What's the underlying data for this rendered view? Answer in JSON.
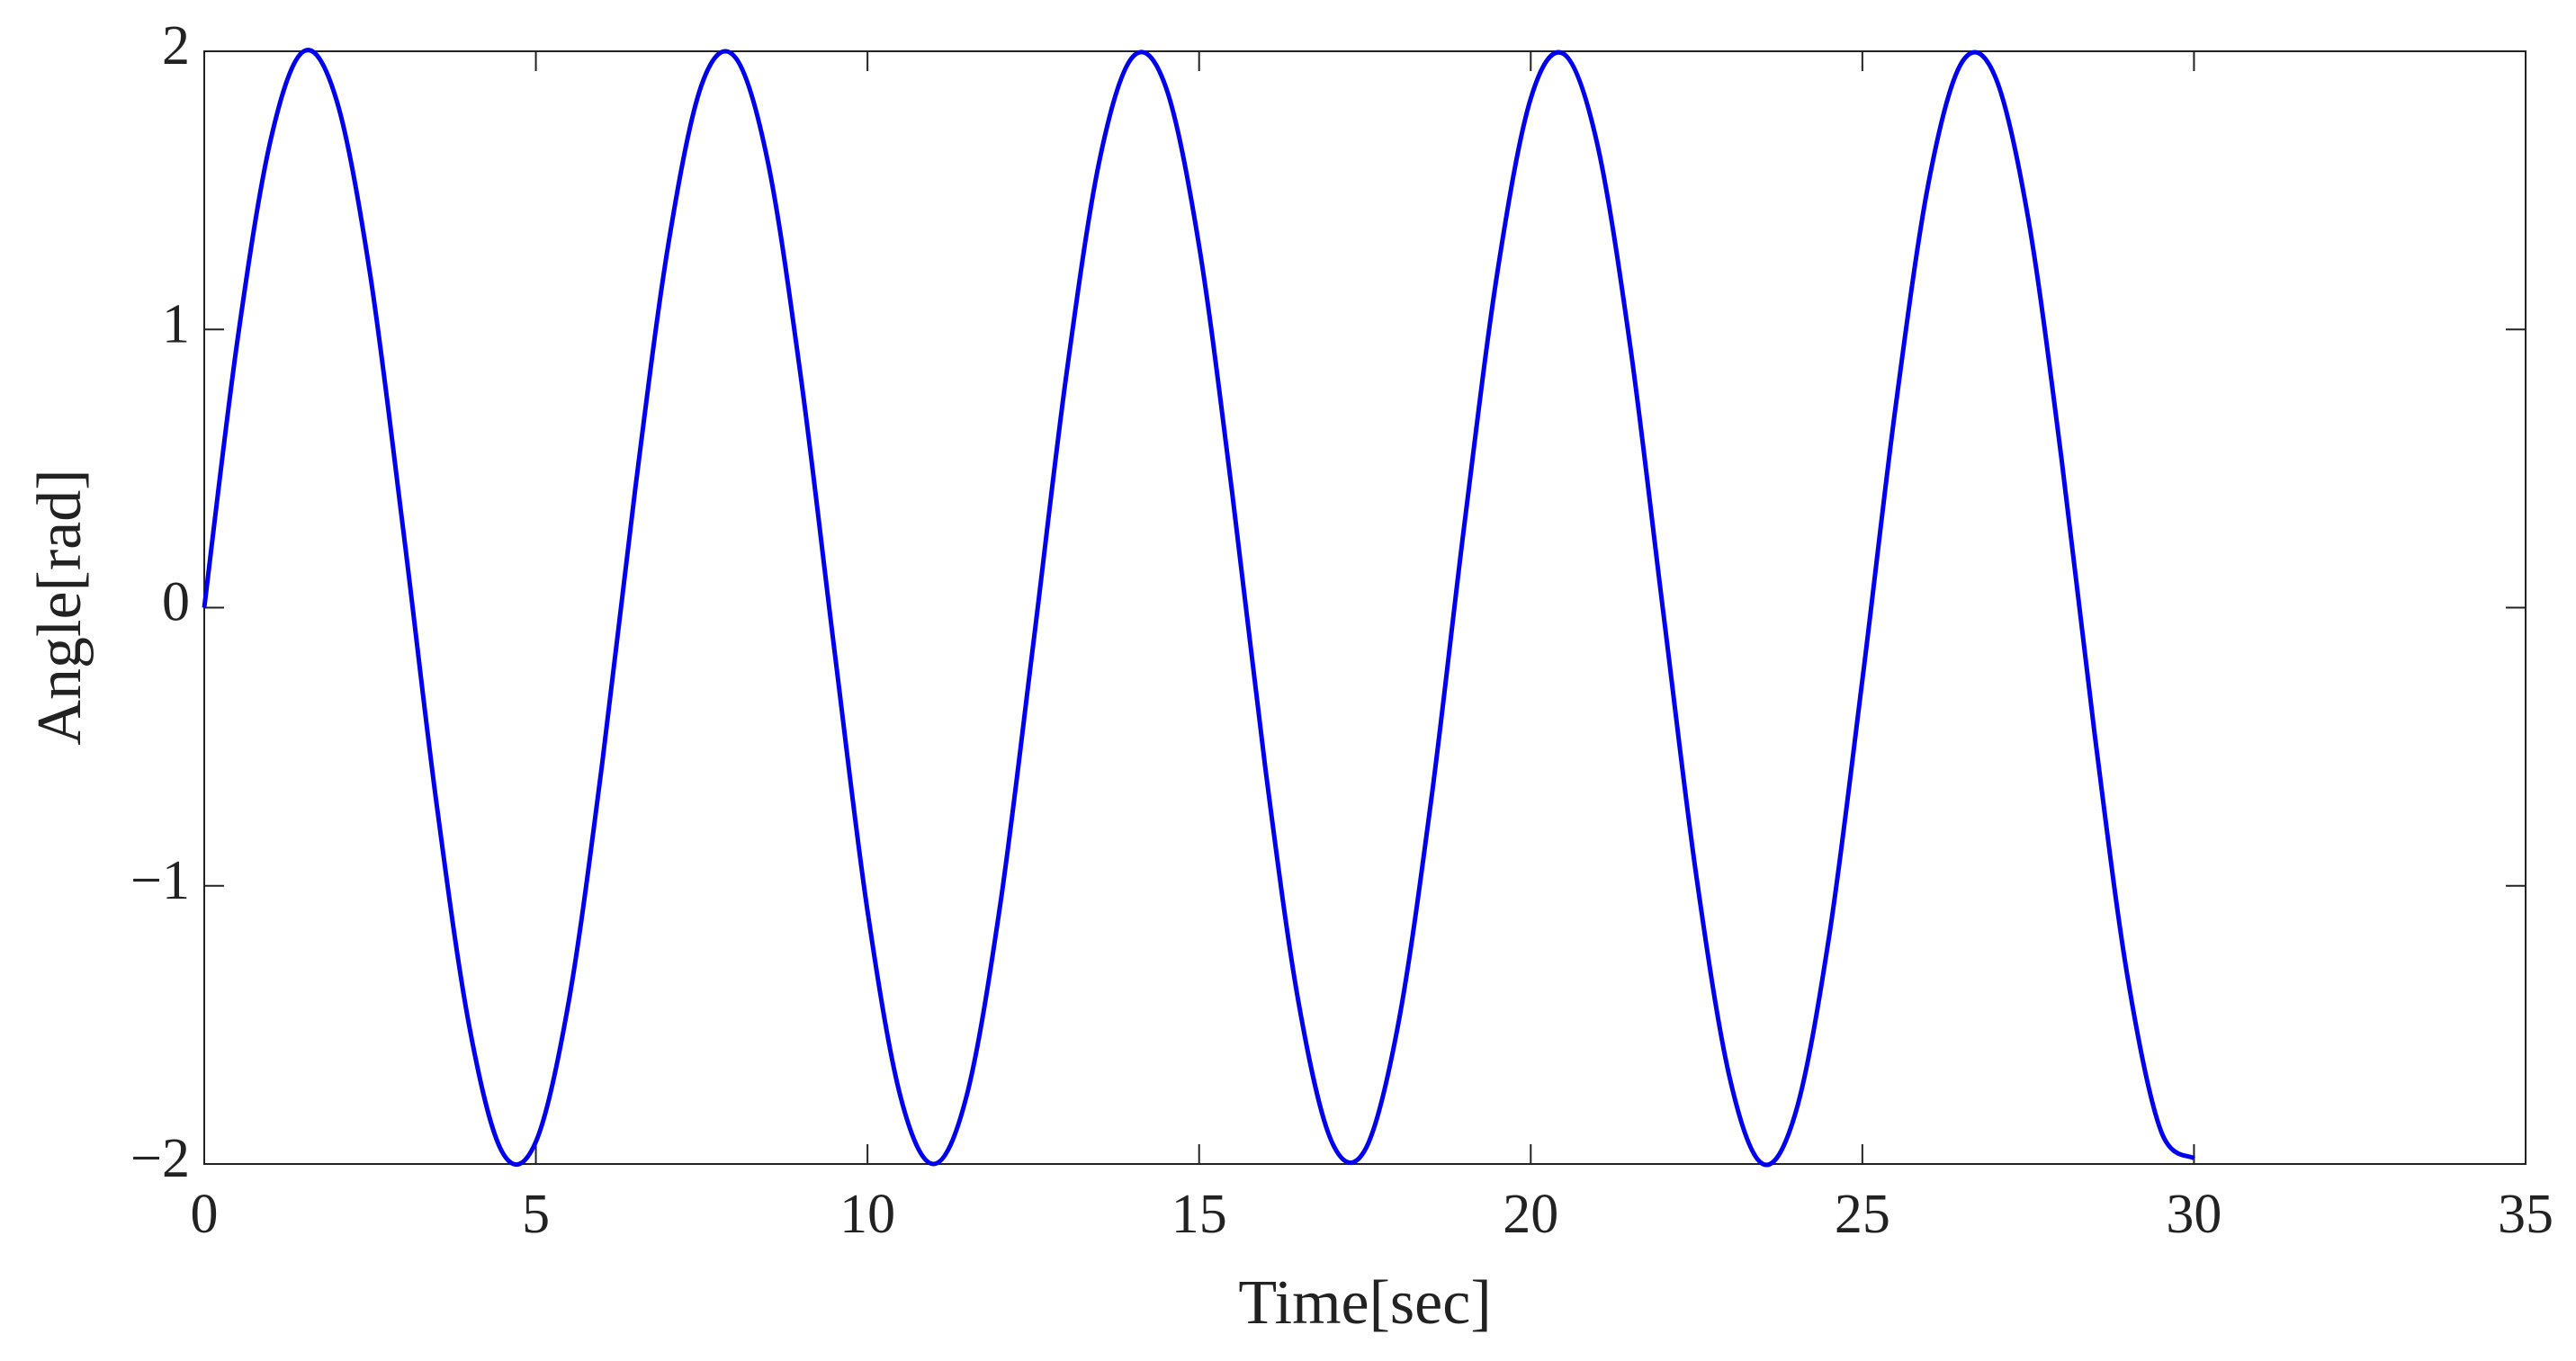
{
  "chart_data": {
    "type": "line",
    "x_label": "Time[sec]",
    "y_label": "Angle[rad]",
    "x": [
      0,
      0.5,
      1,
      1.5,
      2,
      2.5,
      3,
      3.5,
      4,
      4.5,
      5,
      5.5,
      6,
      6.5,
      7,
      7.5,
      8,
      8.5,
      9,
      9.5,
      10,
      10.5,
      11,
      11.5,
      12,
      12.5,
      13,
      13.5,
      14,
      14.5,
      15,
      15.5,
      16,
      16.5,
      17,
      17.5,
      18,
      18.5,
      19,
      19.5,
      20,
      20.5,
      21,
      21.5,
      22,
      22.5,
      23,
      23.5,
      24,
      24.5,
      25,
      25.5,
      26,
      26.5,
      27,
      27.5,
      28,
      28.5,
      29,
      29.5,
      30
    ],
    "series": [
      {
        "color": "#0000ee",
        "values": [
          0,
          0.96,
          1.68,
          2.0,
          1.82,
          1.2,
          0.28,
          -0.7,
          -1.51,
          -1.96,
          -1.92,
          -1.41,
          -0.56,
          0.43,
          1.31,
          1.88,
          1.98,
          1.6,
          0.82,
          -0.15,
          -1.09,
          -1.76,
          -2.0,
          -1.75,
          -1.07,
          -0.13,
          0.84,
          1.61,
          1.98,
          1.87,
          1.3,
          0.41,
          -0.58,
          -1.42,
          -1.92,
          -1.95,
          -1.5,
          -0.69,
          0.3,
          1.21,
          1.83,
          1.99,
          1.67,
          0.94,
          -0.02,
          -0.97,
          -1.69,
          -2.0,
          -1.81,
          -1.18,
          -0.26,
          0.72,
          1.53,
          1.96,
          1.91,
          1.4,
          0.54,
          -0.45,
          -1.33,
          -1.88,
          -1.98
        ]
      }
    ],
    "xlim": [
      0,
      35
    ],
    "xticks": [
      0,
      5,
      10,
      15,
      20,
      25,
      30,
      35
    ],
    "ylim": [
      -2,
      2
    ],
    "yticks": [
      {
        "value": -2,
        "label": "−2"
      },
      {
        "value": -1,
        "label": "−1"
      },
      0,
      1,
      2
    ],
    "grid": false
  }
}
